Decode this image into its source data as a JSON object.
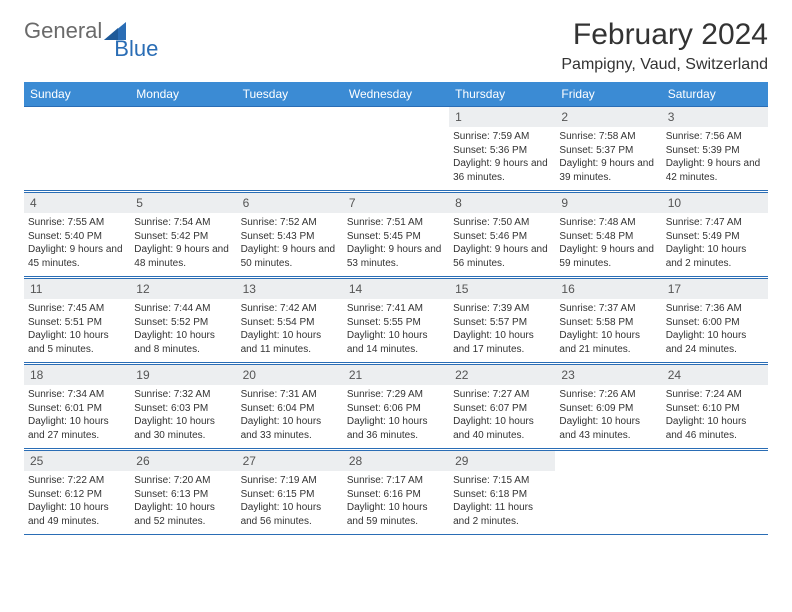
{
  "logo": {
    "text1": "General",
    "text2": "Blue"
  },
  "title": "February 2024",
  "location": "Pampigny, Vaud, Switzerland",
  "colors": {
    "header_bg": "#3b8bd4",
    "header_text": "#ffffff",
    "border": "#2a6db5",
    "daynum_bg": "#eceef0",
    "logo_gray": "#6a6a6a",
    "logo_blue": "#2a6db5"
  },
  "day_names": [
    "Sunday",
    "Monday",
    "Tuesday",
    "Wednesday",
    "Thursday",
    "Friday",
    "Saturday"
  ],
  "weeks": [
    [
      {
        "n": "",
        "sunrise": "",
        "sunset": "",
        "daylight": ""
      },
      {
        "n": "",
        "sunrise": "",
        "sunset": "",
        "daylight": ""
      },
      {
        "n": "",
        "sunrise": "",
        "sunset": "",
        "daylight": ""
      },
      {
        "n": "",
        "sunrise": "",
        "sunset": "",
        "daylight": ""
      },
      {
        "n": "1",
        "sunrise": "Sunrise: 7:59 AM",
        "sunset": "Sunset: 5:36 PM",
        "daylight": "Daylight: 9 hours and 36 minutes."
      },
      {
        "n": "2",
        "sunrise": "Sunrise: 7:58 AM",
        "sunset": "Sunset: 5:37 PM",
        "daylight": "Daylight: 9 hours and 39 minutes."
      },
      {
        "n": "3",
        "sunrise": "Sunrise: 7:56 AM",
        "sunset": "Sunset: 5:39 PM",
        "daylight": "Daylight: 9 hours and 42 minutes."
      }
    ],
    [
      {
        "n": "4",
        "sunrise": "Sunrise: 7:55 AM",
        "sunset": "Sunset: 5:40 PM",
        "daylight": "Daylight: 9 hours and 45 minutes."
      },
      {
        "n": "5",
        "sunrise": "Sunrise: 7:54 AM",
        "sunset": "Sunset: 5:42 PM",
        "daylight": "Daylight: 9 hours and 48 minutes."
      },
      {
        "n": "6",
        "sunrise": "Sunrise: 7:52 AM",
        "sunset": "Sunset: 5:43 PM",
        "daylight": "Daylight: 9 hours and 50 minutes."
      },
      {
        "n": "7",
        "sunrise": "Sunrise: 7:51 AM",
        "sunset": "Sunset: 5:45 PM",
        "daylight": "Daylight: 9 hours and 53 minutes."
      },
      {
        "n": "8",
        "sunrise": "Sunrise: 7:50 AM",
        "sunset": "Sunset: 5:46 PM",
        "daylight": "Daylight: 9 hours and 56 minutes."
      },
      {
        "n": "9",
        "sunrise": "Sunrise: 7:48 AM",
        "sunset": "Sunset: 5:48 PM",
        "daylight": "Daylight: 9 hours and 59 minutes."
      },
      {
        "n": "10",
        "sunrise": "Sunrise: 7:47 AM",
        "sunset": "Sunset: 5:49 PM",
        "daylight": "Daylight: 10 hours and 2 minutes."
      }
    ],
    [
      {
        "n": "11",
        "sunrise": "Sunrise: 7:45 AM",
        "sunset": "Sunset: 5:51 PM",
        "daylight": "Daylight: 10 hours and 5 minutes."
      },
      {
        "n": "12",
        "sunrise": "Sunrise: 7:44 AM",
        "sunset": "Sunset: 5:52 PM",
        "daylight": "Daylight: 10 hours and 8 minutes."
      },
      {
        "n": "13",
        "sunrise": "Sunrise: 7:42 AM",
        "sunset": "Sunset: 5:54 PM",
        "daylight": "Daylight: 10 hours and 11 minutes."
      },
      {
        "n": "14",
        "sunrise": "Sunrise: 7:41 AM",
        "sunset": "Sunset: 5:55 PM",
        "daylight": "Daylight: 10 hours and 14 minutes."
      },
      {
        "n": "15",
        "sunrise": "Sunrise: 7:39 AM",
        "sunset": "Sunset: 5:57 PM",
        "daylight": "Daylight: 10 hours and 17 minutes."
      },
      {
        "n": "16",
        "sunrise": "Sunrise: 7:37 AM",
        "sunset": "Sunset: 5:58 PM",
        "daylight": "Daylight: 10 hours and 21 minutes."
      },
      {
        "n": "17",
        "sunrise": "Sunrise: 7:36 AM",
        "sunset": "Sunset: 6:00 PM",
        "daylight": "Daylight: 10 hours and 24 minutes."
      }
    ],
    [
      {
        "n": "18",
        "sunrise": "Sunrise: 7:34 AM",
        "sunset": "Sunset: 6:01 PM",
        "daylight": "Daylight: 10 hours and 27 minutes."
      },
      {
        "n": "19",
        "sunrise": "Sunrise: 7:32 AM",
        "sunset": "Sunset: 6:03 PM",
        "daylight": "Daylight: 10 hours and 30 minutes."
      },
      {
        "n": "20",
        "sunrise": "Sunrise: 7:31 AM",
        "sunset": "Sunset: 6:04 PM",
        "daylight": "Daylight: 10 hours and 33 minutes."
      },
      {
        "n": "21",
        "sunrise": "Sunrise: 7:29 AM",
        "sunset": "Sunset: 6:06 PM",
        "daylight": "Daylight: 10 hours and 36 minutes."
      },
      {
        "n": "22",
        "sunrise": "Sunrise: 7:27 AM",
        "sunset": "Sunset: 6:07 PM",
        "daylight": "Daylight: 10 hours and 40 minutes."
      },
      {
        "n": "23",
        "sunrise": "Sunrise: 7:26 AM",
        "sunset": "Sunset: 6:09 PM",
        "daylight": "Daylight: 10 hours and 43 minutes."
      },
      {
        "n": "24",
        "sunrise": "Sunrise: 7:24 AM",
        "sunset": "Sunset: 6:10 PM",
        "daylight": "Daylight: 10 hours and 46 minutes."
      }
    ],
    [
      {
        "n": "25",
        "sunrise": "Sunrise: 7:22 AM",
        "sunset": "Sunset: 6:12 PM",
        "daylight": "Daylight: 10 hours and 49 minutes."
      },
      {
        "n": "26",
        "sunrise": "Sunrise: 7:20 AM",
        "sunset": "Sunset: 6:13 PM",
        "daylight": "Daylight: 10 hours and 52 minutes."
      },
      {
        "n": "27",
        "sunrise": "Sunrise: 7:19 AM",
        "sunset": "Sunset: 6:15 PM",
        "daylight": "Daylight: 10 hours and 56 minutes."
      },
      {
        "n": "28",
        "sunrise": "Sunrise: 7:17 AM",
        "sunset": "Sunset: 6:16 PM",
        "daylight": "Daylight: 10 hours and 59 minutes."
      },
      {
        "n": "29",
        "sunrise": "Sunrise: 7:15 AM",
        "sunset": "Sunset: 6:18 PM",
        "daylight": "Daylight: 11 hours and 2 minutes."
      },
      {
        "n": "",
        "sunrise": "",
        "sunset": "",
        "daylight": ""
      },
      {
        "n": "",
        "sunrise": "",
        "sunset": "",
        "daylight": ""
      }
    ]
  ]
}
